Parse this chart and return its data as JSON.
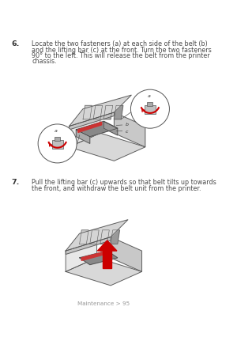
{
  "background_color": "#ffffff",
  "step6_number": "6.",
  "step6_text_line1": "Locate the two fasteners (a) at each side of the belt (b)",
  "step6_text_line2": "and the lifting bar (c) at the front. Turn the two fasteners",
  "step6_text_line3": "90° to the left. This will release the belt from the printer",
  "step6_text_line4": "chassis.",
  "step7_number": "7.",
  "step7_text_line1": "Pull the lifting bar (c) upwards so that belt tilts up towards",
  "step7_text_line2": "the front, and withdraw the belt unit from the printer.",
  "footer_text": "Maintenance > 95",
  "text_color": "#4a4a4a",
  "step_num_color": "#333333",
  "footer_color": "#999999",
  "font_size_text": 5.8,
  "font_size_step": 6.8,
  "font_size_footer": 5.2,
  "font_size_label": 4.5,
  "red_color": "#cc0000",
  "line_color": "#555555",
  "light_gray": "#e0e0e0",
  "mid_gray": "#b0b0b0",
  "dark_gray": "#707070"
}
